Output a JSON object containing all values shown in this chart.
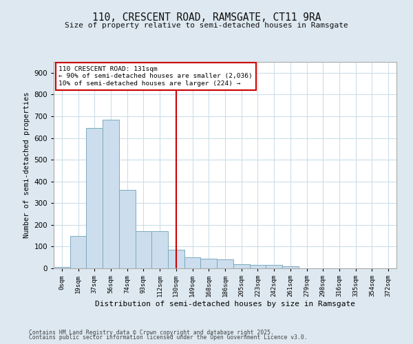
{
  "title1": "110, CRESCENT ROAD, RAMSGATE, CT11 9RA",
  "title2": "Size of property relative to semi-detached houses in Ramsgate",
  "xlabel": "Distribution of semi-detached houses by size in Ramsgate",
  "ylabel": "Number of semi-detached properties",
  "bar_color": "#ccdded",
  "bar_edge_color": "#7aaabf",
  "vline_color": "#cc0000",
  "vline_x": 7,
  "annotation_title": "110 CRESCENT ROAD: 131sqm",
  "annotation_line1": "← 90% of semi-detached houses are smaller (2,036)",
  "annotation_line2": "10% of semi-detached houses are larger (224) →",
  "annotation_box_color": "#cc0000",
  "categories": [
    "0sqm",
    "19sqm",
    "37sqm",
    "56sqm",
    "74sqm",
    "93sqm",
    "112sqm",
    "130sqm",
    "149sqm",
    "168sqm",
    "186sqm",
    "205sqm",
    "223sqm",
    "242sqm",
    "261sqm",
    "279sqm",
    "298sqm",
    "316sqm",
    "335sqm",
    "354sqm",
    "372sqm"
  ],
  "values": [
    5,
    150,
    645,
    685,
    360,
    170,
    170,
    85,
    50,
    45,
    40,
    20,
    15,
    15,
    10,
    0,
    0,
    0,
    0,
    0,
    0
  ],
  "ylim": [
    0,
    950
  ],
  "yticks": [
    0,
    100,
    200,
    300,
    400,
    500,
    600,
    700,
    800,
    900
  ],
  "fig_bg_color": "#dde8f0",
  "plot_bg_color": "#ffffff",
  "grid_color": "#ccdde8",
  "footer1": "Contains HM Land Registry data © Crown copyright and database right 2025.",
  "footer2": "Contains public sector information licensed under the Open Government Licence v3.0."
}
